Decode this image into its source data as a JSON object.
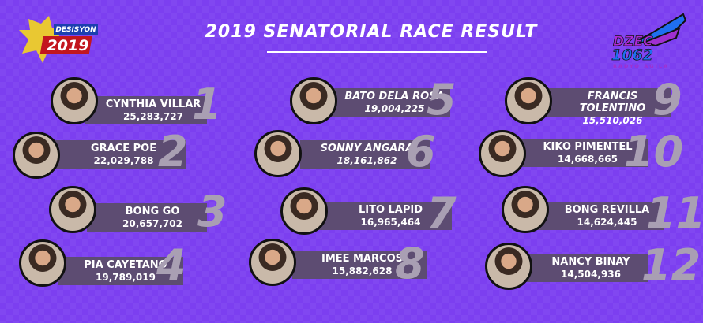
{
  "title": "2019 SENATORIAL RACE RESULT",
  "logos": {
    "left": "DESISYON NG BAYAN 2019",
    "right": "DZEC 1062 RADYO AGILA"
  },
  "colors": {
    "background": "#7c3ff0",
    "bar": "#5d4c72",
    "rank": "#a99fb3"
  },
  "results": [
    {
      "rank": "1",
      "name": "CYNTHIA VILLAR",
      "votes": "25,283,727"
    },
    {
      "rank": "2",
      "name": "GRACE POE",
      "votes": "22,029,788"
    },
    {
      "rank": "3",
      "name": "BONG GO",
      "votes": "20,657,702"
    },
    {
      "rank": "4",
      "name": "PIA CAYETANO",
      "votes": "19,789,019"
    },
    {
      "rank": "5",
      "name": "BATO DELA ROSA",
      "votes": "19,004,225"
    },
    {
      "rank": "6",
      "name": "SONNY ANGARA",
      "votes": "18,161,862"
    },
    {
      "rank": "7",
      "name": "LITO LAPID",
      "votes": "16,965,464"
    },
    {
      "rank": "8",
      "name": "IMEE MARCOS",
      "votes": "15,882,628"
    },
    {
      "rank": "9",
      "name": "FRANCIS TOLENTINO",
      "votes": "15,510,026"
    },
    {
      "rank": "10",
      "name": "KIKO PIMENTEL",
      "votes": "14,668,665"
    },
    {
      "rank": "11",
      "name": "BONG REVILLA",
      "votes": "14,624,445"
    },
    {
      "rank": "12",
      "name": "NANCY BINAY",
      "votes": "14,504,936"
    }
  ]
}
